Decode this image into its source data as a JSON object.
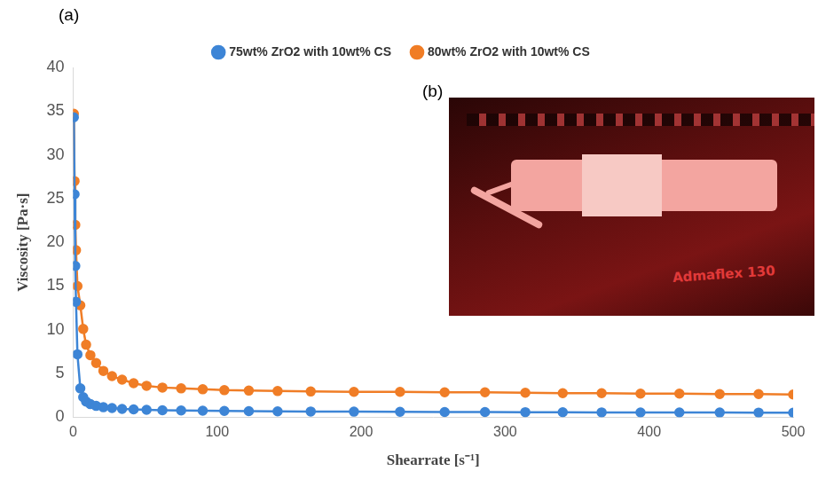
{
  "panel_label": "(a)",
  "chart_data": {
    "type": "line",
    "x": [
      0.5,
      1,
      1.5,
      2,
      3,
      5,
      7,
      9,
      12,
      16,
      21,
      27,
      34,
      42,
      51,
      62,
      75,
      90,
      105,
      122,
      142,
      165,
      195,
      227,
      258,
      286,
      314,
      340,
      367,
      394,
      421,
      449,
      476,
      500
    ],
    "series": [
      {
        "name": "75wt% ZrO2 with 10wt% CS",
        "color": "#3d85d6",
        "marker": "circle",
        "values": [
          34.3,
          25.5,
          17.3,
          13.2,
          7.2,
          3.3,
          2.3,
          1.8,
          1.5,
          1.3,
          1.15,
          1.05,
          0.95,
          0.9,
          0.85,
          0.8,
          0.78,
          0.75,
          0.72,
          0.7,
          0.68,
          0.66,
          0.64,
          0.62,
          0.6,
          0.6,
          0.58,
          0.57,
          0.56,
          0.55,
          0.55,
          0.54,
          0.53,
          0.52
        ]
      },
      {
        "name": "80wt% ZrO2 with 10wt% CS",
        "color": "#f07d26",
        "marker": "circle",
        "values": [
          34.7,
          27,
          22,
          19.1,
          15,
          12.8,
          10.1,
          8.3,
          7.1,
          6.2,
          5.3,
          4.7,
          4.3,
          3.9,
          3.6,
          3.4,
          3.3,
          3.2,
          3.1,
          3.05,
          3.0,
          2.95,
          2.9,
          2.9,
          2.85,
          2.85,
          2.8,
          2.75,
          2.75,
          2.7,
          2.7,
          2.65,
          2.65,
          2.6
        ]
      }
    ],
    "xlabel": "Shearrate [s⁻¹]",
    "ylabel": "Viscosity [Pa·s]",
    "xlim": [
      0,
      500
    ],
    "xticks": [
      0,
      100,
      200,
      300,
      400,
      500
    ],
    "ylim": [
      0,
      40
    ],
    "yticks": [
      0,
      5,
      10,
      15,
      20,
      25,
      30,
      35,
      40
    ],
    "grid": false,
    "legend": "top"
  },
  "inset": {
    "label": "(b)",
    "text": "Admaflex 130"
  }
}
